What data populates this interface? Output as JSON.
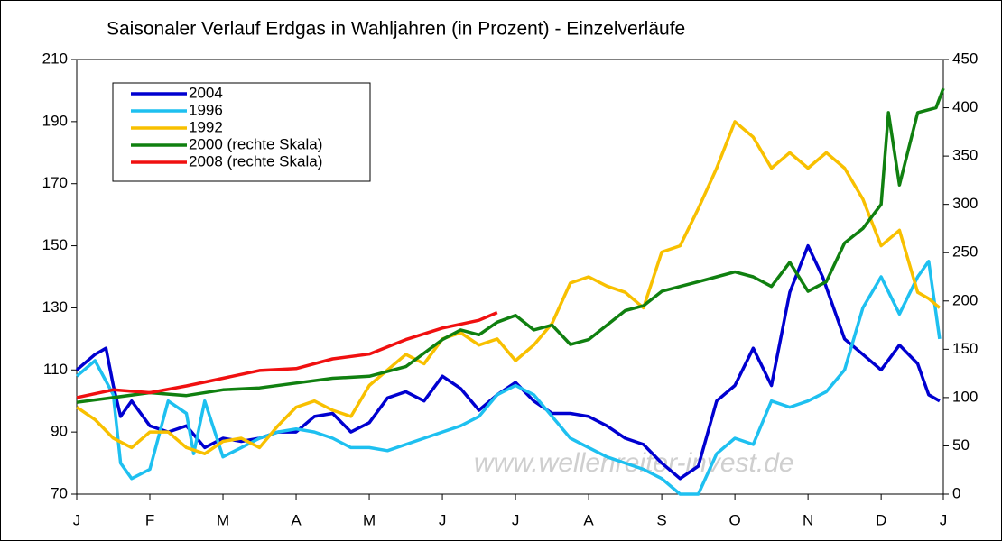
{
  "chart_data": {
    "type": "line",
    "title": "Saisonaler Verlauf Erdgas in Wahljahren (in Prozent) - Einzelverläufe",
    "watermark": "www.wellenreiter-invest.de",
    "xlim": [
      0,
      11.85
    ],
    "xticks": [
      {
        "value": 0,
        "label": "J"
      },
      {
        "value": 1,
        "label": "F"
      },
      {
        "value": 2,
        "label": "M"
      },
      {
        "value": 3,
        "label": "A"
      },
      {
        "value": 4,
        "label": "M"
      },
      {
        "value": 5,
        "label": "J"
      },
      {
        "value": 6,
        "label": "J"
      },
      {
        "value": 7,
        "label": "A"
      },
      {
        "value": 8,
        "label": "S"
      },
      {
        "value": 9,
        "label": "O"
      },
      {
        "value": 10,
        "label": "N"
      },
      {
        "value": 11,
        "label": "D"
      },
      {
        "value": 11.85,
        "label": "J"
      }
    ],
    "ylim": [
      70,
      210
    ],
    "yticks": [
      70,
      90,
      110,
      130,
      150,
      170,
      190,
      210
    ],
    "y2lim": [
      0,
      450
    ],
    "y2ticks": [
      0,
      50,
      100,
      150,
      200,
      250,
      300,
      350,
      400,
      450
    ],
    "grid": false,
    "legend": "upper left",
    "series": [
      {
        "name": "2004",
        "color": "#0000d0",
        "x": [
          0,
          0.25,
          0.4,
          0.5,
          0.6,
          0.75,
          1,
          1.25,
          1.5,
          1.75,
          2,
          2.25,
          2.5,
          2.75,
          3,
          3.25,
          3.5,
          3.75,
          4,
          4.25,
          4.5,
          4.75,
          5,
          5.25,
          5.5,
          5.75,
          6,
          6.25,
          6.5,
          6.75,
          7,
          7.25,
          7.5,
          7.75,
          8,
          8.25,
          8.5,
          8.75,
          9,
          9.25,
          9.5,
          9.75,
          10,
          10.2,
          10.5,
          10.75,
          11,
          11.25,
          11.5,
          11.65,
          11.8
        ],
        "values": [
          110,
          115,
          117,
          105,
          95,
          100,
          92,
          90,
          92,
          85,
          88,
          87,
          88,
          90,
          90,
          95,
          96,
          90,
          93,
          101,
          103,
          100,
          108,
          104,
          97,
          102,
          106,
          100,
          96,
          96,
          95,
          92,
          88,
          86,
          80,
          75,
          79,
          100,
          105,
          117,
          105,
          135,
          150,
          140,
          120,
          115,
          110,
          118,
          112,
          102,
          100
        ]
      },
      {
        "name": "1996",
        "color": "#1ec0f0",
        "x": [
          0,
          0.25,
          0.5,
          0.6,
          0.75,
          1,
          1.25,
          1.5,
          1.6,
          1.75,
          2,
          2.25,
          2.5,
          2.75,
          3,
          3.25,
          3.5,
          3.75,
          4,
          4.25,
          4.5,
          4.75,
          5,
          5.25,
          5.5,
          5.75,
          6,
          6.25,
          6.5,
          6.75,
          7,
          7.25,
          7.5,
          7.75,
          8,
          8.25,
          8.5,
          8.75,
          9,
          9.25,
          9.5,
          9.75,
          10,
          10.25,
          10.5,
          10.75,
          11,
          11.25,
          11.5,
          11.65,
          11.8
        ],
        "values": [
          108,
          113,
          102,
          80,
          75,
          78,
          100,
          96,
          83,
          100,
          82,
          85,
          88,
          90,
          91,
          90,
          88,
          85,
          85,
          84,
          86,
          88,
          90,
          92,
          95,
          102,
          105,
          102,
          95,
          88,
          85,
          82,
          80,
          78,
          75,
          70,
          70,
          83,
          88,
          86,
          100,
          98,
          100,
          103,
          110,
          130,
          140,
          128,
          140,
          145,
          120
        ]
      },
      {
        "name": "1992",
        "color": "#f8c000",
        "x": [
          0,
          0.25,
          0.5,
          0.75,
          1,
          1.25,
          1.5,
          1.75,
          2,
          2.25,
          2.5,
          2.75,
          3,
          3.25,
          3.5,
          3.75,
          4,
          4.25,
          4.5,
          4.75,
          5,
          5.25,
          5.5,
          5.75,
          6,
          6.25,
          6.5,
          6.75,
          7,
          7.25,
          7.5,
          7.75,
          8,
          8.25,
          8.5,
          8.75,
          9,
          9.25,
          9.5,
          9.75,
          10,
          10.25,
          10.5,
          10.75,
          11,
          11.25,
          11.5,
          11.65,
          11.8
        ],
        "values": [
          98,
          94,
          88,
          85,
          90,
          90,
          85,
          83,
          87,
          88,
          85,
          92,
          98,
          100,
          97,
          95,
          105,
          110,
          115,
          112,
          120,
          122,
          118,
          120,
          113,
          118,
          125,
          138,
          140,
          137,
          135,
          130,
          148,
          150,
          162,
          175,
          190,
          185,
          175,
          180,
          175,
          180,
          175,
          165,
          150,
          155,
          135,
          133,
          130
        ]
      },
      {
        "name": "2000 (rechte Skala)",
        "color": "#108010",
        "axis": "y2",
        "x": [
          0,
          0.5,
          1,
          1.5,
          2,
          2.5,
          3,
          3.5,
          4,
          4.5,
          5,
          5.25,
          5.5,
          5.75,
          6,
          6.25,
          6.5,
          6.75,
          7,
          7.25,
          7.5,
          7.75,
          8,
          8.25,
          8.5,
          8.75,
          9,
          9.25,
          9.5,
          9.75,
          10,
          10.25,
          10.5,
          10.75,
          11,
          11.1,
          11.25,
          11.5,
          11.75,
          11.85
        ],
        "values": [
          95,
          100,
          105,
          102,
          108,
          110,
          115,
          120,
          122,
          132,
          160,
          170,
          165,
          178,
          185,
          170,
          175,
          155,
          160,
          175,
          190,
          195,
          210,
          215,
          220,
          225,
          230,
          225,
          215,
          240,
          210,
          220,
          260,
          275,
          300,
          395,
          320,
          395,
          400,
          420
        ]
      },
      {
        "name": "2008 (rechte Skala)",
        "color": "#f01010",
        "axis": "y2",
        "x": [
          0,
          0.5,
          1,
          1.5,
          2,
          2.5,
          3,
          3.5,
          4,
          4.5,
          5,
          5.5,
          5.75
        ],
        "values": [
          100,
          108,
          105,
          112,
          120,
          128,
          130,
          140,
          145,
          160,
          172,
          180,
          188
        ]
      }
    ]
  }
}
